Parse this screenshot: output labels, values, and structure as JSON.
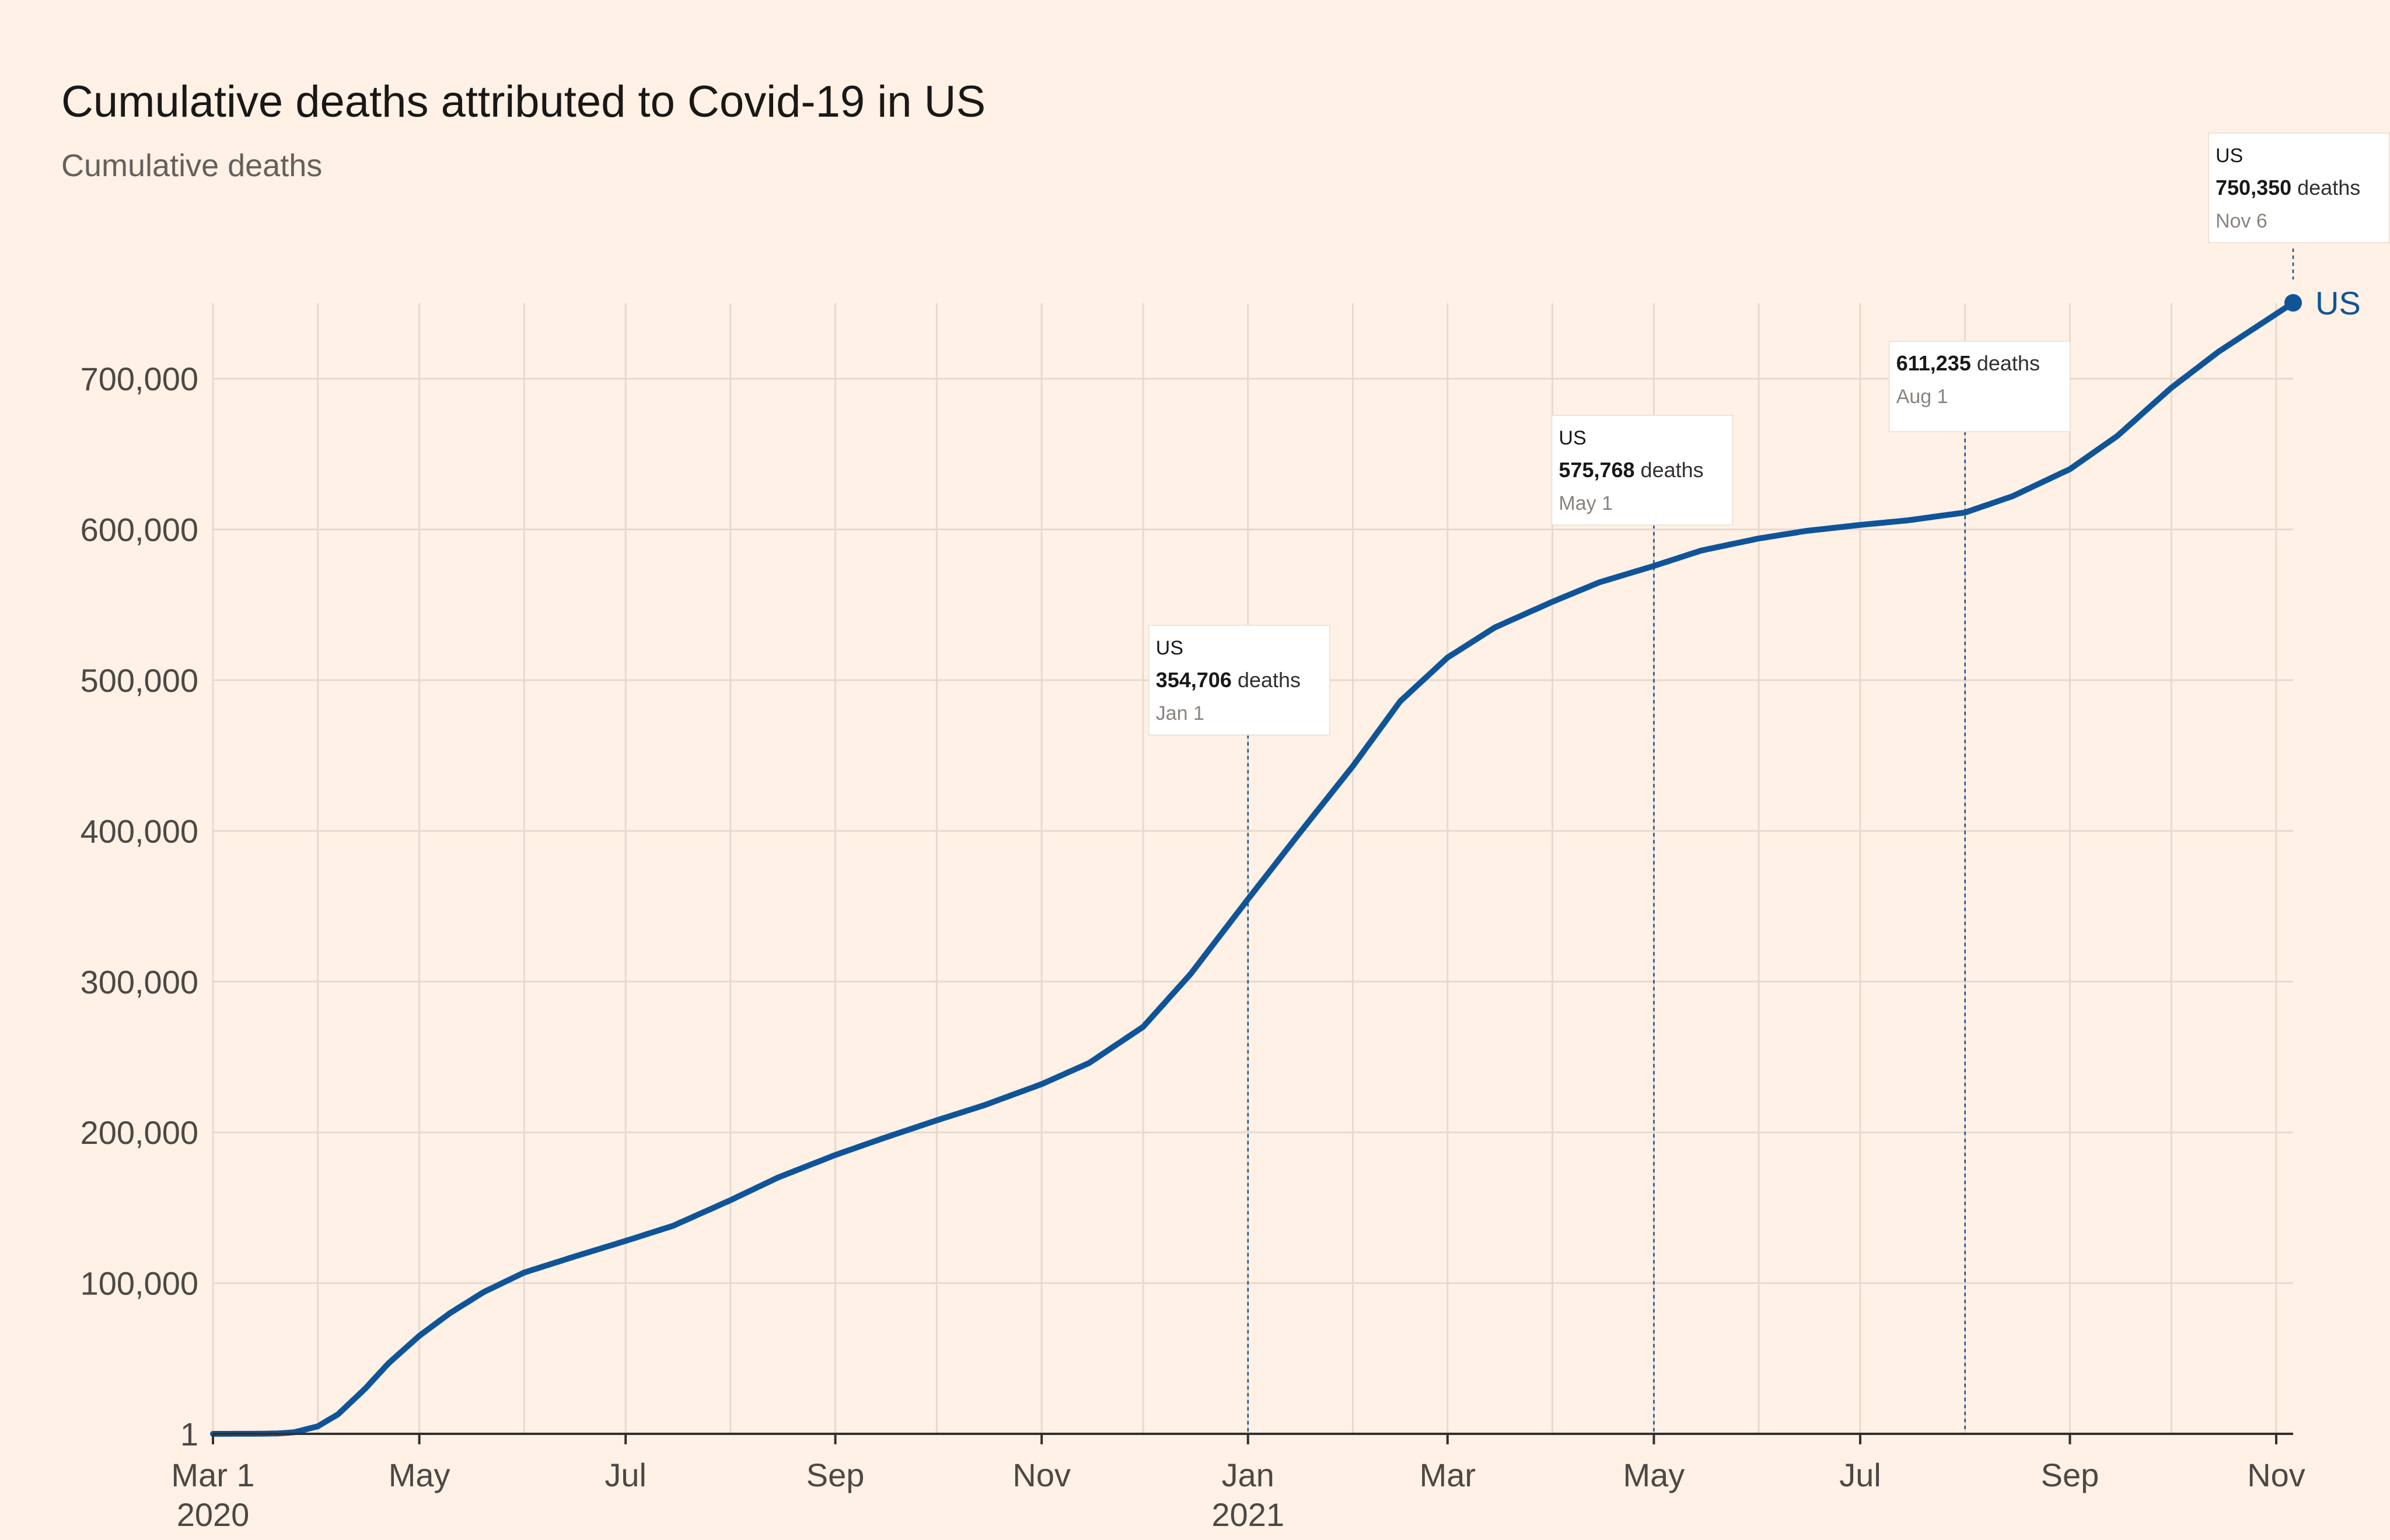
{
  "chart_data": {
    "type": "line",
    "title": "Cumulative deaths attributed to Covid-19 in US",
    "subtitle": "Cumulative deaths",
    "xlabel": "",
    "ylabel": "",
    "x_domain": [
      "2020-03-01",
      "2021-11-06"
    ],
    "ylim": [
      1,
      750000
    ],
    "yticks": [
      {
        "value": 1,
        "label": "1"
      },
      {
        "value": 100000,
        "label": "100,000"
      },
      {
        "value": 200000,
        "label": "200,000"
      },
      {
        "value": 300000,
        "label": "300,000"
      },
      {
        "value": 400000,
        "label": "400,000"
      },
      {
        "value": 500000,
        "label": "500,000"
      },
      {
        "value": 600000,
        "label": "600,000"
      },
      {
        "value": 700000,
        "label": "700,000"
      }
    ],
    "xticks": [
      {
        "date": "2020-03-01",
        "label": "Mar 1",
        "sublabel": "2020"
      },
      {
        "date": "2020-05-01",
        "label": "May"
      },
      {
        "date": "2020-07-01",
        "label": "Jul"
      },
      {
        "date": "2020-09-01",
        "label": "Sep"
      },
      {
        "date": "2020-11-01",
        "label": "Nov"
      },
      {
        "date": "2021-01-01",
        "label": "Jan",
        "sublabel": "2021"
      },
      {
        "date": "2021-03-01",
        "label": "Mar"
      },
      {
        "date": "2021-05-01",
        "label": "May"
      },
      {
        "date": "2021-07-01",
        "label": "Jul"
      },
      {
        "date": "2021-09-01",
        "label": "Sep"
      },
      {
        "date": "2021-11-01",
        "label": "Nov"
      }
    ],
    "minor_grid_dates": [
      "2020-04-01",
      "2020-06-01",
      "2020-08-01",
      "2020-10-01",
      "2020-12-01",
      "2021-02-01",
      "2021-04-01",
      "2021-06-01",
      "2021-08-01",
      "2021-10-01"
    ],
    "series": [
      {
        "name": "US",
        "color": "#0f5499",
        "points": [
          [
            "2020-03-01",
            1
          ],
          [
            "2020-03-10",
            30
          ],
          [
            "2020-03-15",
            70
          ],
          [
            "2020-03-20",
            250
          ],
          [
            "2020-03-25",
            1000
          ],
          [
            "2020-04-01",
            5000
          ],
          [
            "2020-04-07",
            13000
          ],
          [
            "2020-04-15",
            30000
          ],
          [
            "2020-04-22",
            47000
          ],
          [
            "2020-05-01",
            65000
          ],
          [
            "2020-05-10",
            80000
          ],
          [
            "2020-05-20",
            94000
          ],
          [
            "2020-06-01",
            107000
          ],
          [
            "2020-06-15",
            117000
          ],
          [
            "2020-07-01",
            128000
          ],
          [
            "2020-07-15",
            138000
          ],
          [
            "2020-08-01",
            155000
          ],
          [
            "2020-08-15",
            170000
          ],
          [
            "2020-09-01",
            185000
          ],
          [
            "2020-09-15",
            196000
          ],
          [
            "2020-10-01",
            208000
          ],
          [
            "2020-10-15",
            218000
          ],
          [
            "2020-11-01",
            232000
          ],
          [
            "2020-11-15",
            246000
          ],
          [
            "2020-12-01",
            270000
          ],
          [
            "2020-12-15",
            305000
          ],
          [
            "2021-01-01",
            354706
          ],
          [
            "2021-01-15",
            395000
          ],
          [
            "2021-02-01",
            443000
          ],
          [
            "2021-02-15",
            486000
          ],
          [
            "2021-03-01",
            515000
          ],
          [
            "2021-03-15",
            535000
          ],
          [
            "2021-04-01",
            552000
          ],
          [
            "2021-04-15",
            565000
          ],
          [
            "2021-05-01",
            575768
          ],
          [
            "2021-05-15",
            586000
          ],
          [
            "2021-06-01",
            594000
          ],
          [
            "2021-06-15",
            599000
          ],
          [
            "2021-07-01",
            603000
          ],
          [
            "2021-07-15",
            606000
          ],
          [
            "2021-08-01",
            611235
          ],
          [
            "2021-08-15",
            622000
          ],
          [
            "2021-09-01",
            640000
          ],
          [
            "2021-09-15",
            662000
          ],
          [
            "2021-10-01",
            694000
          ],
          [
            "2021-10-15",
            718000
          ],
          [
            "2021-11-01",
            743000
          ],
          [
            "2021-11-06",
            750350
          ]
        ]
      }
    ],
    "end_label": "US",
    "annotations": [
      {
        "date": "2021-01-01",
        "series": "US",
        "value_text": "354,706",
        "unit": "deaths",
        "date_label": "Jan 1"
      },
      {
        "date": "2021-05-01",
        "series": "US",
        "value_text": "575,768",
        "unit": "deaths",
        "date_label": "May 1"
      },
      {
        "date": "2021-08-01",
        "series": "",
        "value_text": "611,235",
        "unit": "deaths",
        "date_label": "Aug 1"
      },
      {
        "date": "2021-11-06",
        "series": "US",
        "value_text": "750,350",
        "unit": "deaths",
        "date_label": "Nov 6"
      }
    ]
  }
}
